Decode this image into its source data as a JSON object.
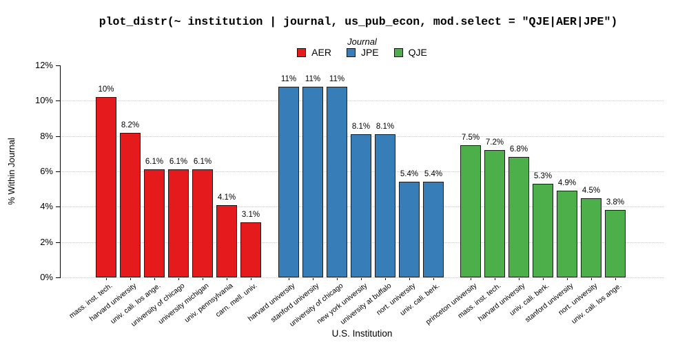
{
  "legend": {
    "title": "Journal",
    "entries": [
      {
        "label": "AER",
        "color": "#E41A1C"
      },
      {
        "label": "JPE",
        "color": "#377EB8"
      },
      {
        "label": "QJE",
        "color": "#4DAF4A"
      }
    ]
  },
  "chart_data": {
    "type": "bar",
    "title": "plot_distr(~ institution | journal, us_pub_econ, mod.select = \"QJE|AER|JPE\")",
    "xlabel": "U.S. Institution",
    "ylabel": "% Within Journal",
    "ylim": [
      0,
      12
    ],
    "ytick_labels": [
      "0%",
      "2%",
      "4%",
      "6%",
      "8%",
      "10%",
      "12%"
    ],
    "grid": "horizontal-dotted",
    "legend_position": "top-center",
    "series": [
      {
        "name": "AER",
        "color": "#E41A1C",
        "bars": [
          {
            "institution": "mass. inst. tech.",
            "value": 10.2,
            "label": "10%"
          },
          {
            "institution": "harvard university",
            "value": 8.2,
            "label": "8.2%"
          },
          {
            "institution": "univ. cali. los ange.",
            "value": 6.1,
            "label": "6.1%"
          },
          {
            "institution": "university of chicago",
            "value": 6.1,
            "label": "6.1%"
          },
          {
            "institution": "university michigan",
            "value": 6.1,
            "label": "6.1%"
          },
          {
            "institution": "univ. pennsylvania",
            "value": 4.1,
            "label": "4.1%"
          },
          {
            "institution": "carn. mell. univ.",
            "value": 3.1,
            "label": "3.1%"
          }
        ]
      },
      {
        "name": "JPE",
        "color": "#377EB8",
        "bars": [
          {
            "institution": "harvard university",
            "value": 10.8,
            "label": "11%"
          },
          {
            "institution": "stanford university",
            "value": 10.8,
            "label": "11%"
          },
          {
            "institution": "university of chicago",
            "value": 10.8,
            "label": "11%"
          },
          {
            "institution": "new york university",
            "value": 8.1,
            "label": "8.1%"
          },
          {
            "institution": "university at buffalo",
            "value": 8.1,
            "label": "8.1%"
          },
          {
            "institution": "nort. university",
            "value": 5.4,
            "label": "5.4%"
          },
          {
            "institution": "univ. cali. berk.",
            "value": 5.4,
            "label": "5.4%"
          }
        ]
      },
      {
        "name": "QJE",
        "color": "#4DAF4A",
        "bars": [
          {
            "institution": "princeton university",
            "value": 7.5,
            "label": "7.5%"
          },
          {
            "institution": "mass. inst. tech.",
            "value": 7.2,
            "label": "7.2%"
          },
          {
            "institution": "harvard university",
            "value": 6.8,
            "label": "6.8%"
          },
          {
            "institution": "univ. cali. berk.",
            "value": 5.3,
            "label": "5.3%"
          },
          {
            "institution": "stanford university",
            "value": 4.9,
            "label": "4.9%"
          },
          {
            "institution": "nort. university",
            "value": 4.5,
            "label": "4.5%"
          },
          {
            "institution": "univ. cali. los ange.",
            "value": 3.8,
            "label": "3.8%"
          }
        ]
      }
    ]
  }
}
